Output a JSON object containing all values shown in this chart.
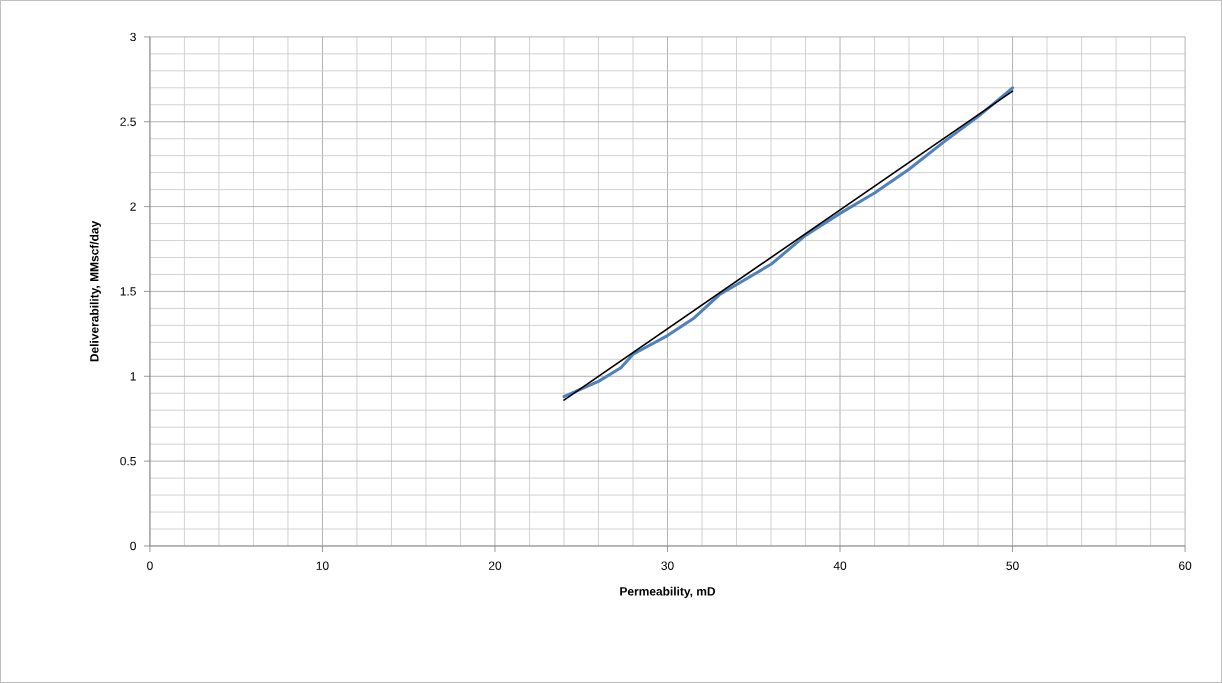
{
  "chart_data": {
    "type": "line",
    "xlabel": "Permeability, mD",
    "ylabel": "Deliverability, MMscf/day",
    "xlim": [
      0,
      60
    ],
    "xticks": [
      0,
      10,
      20,
      30,
      40,
      50,
      60
    ],
    "ylim": [
      0,
      3
    ],
    "yticks": [
      0,
      0.5,
      1,
      1.5,
      2,
      2.5,
      3
    ],
    "grid": true,
    "marker": "none",
    "series": [
      {
        "color": "#4f81bd",
        "x": [
          24,
          26,
          27.3,
          28,
          30,
          31.5,
          33,
          36,
          38,
          40,
          42,
          44,
          46,
          48,
          50
        ],
        "values": [
          0.88,
          0.97,
          1.05,
          1.13,
          1.24,
          1.34,
          1.48,
          1.66,
          1.83,
          1.96,
          2.08,
          2.22,
          2.38,
          2.53,
          2.7
        ]
      },
      {
        "color": "#000000",
        "x": [
          24,
          50
        ],
        "values": [
          0.86,
          2.68
        ]
      }
    ]
  }
}
